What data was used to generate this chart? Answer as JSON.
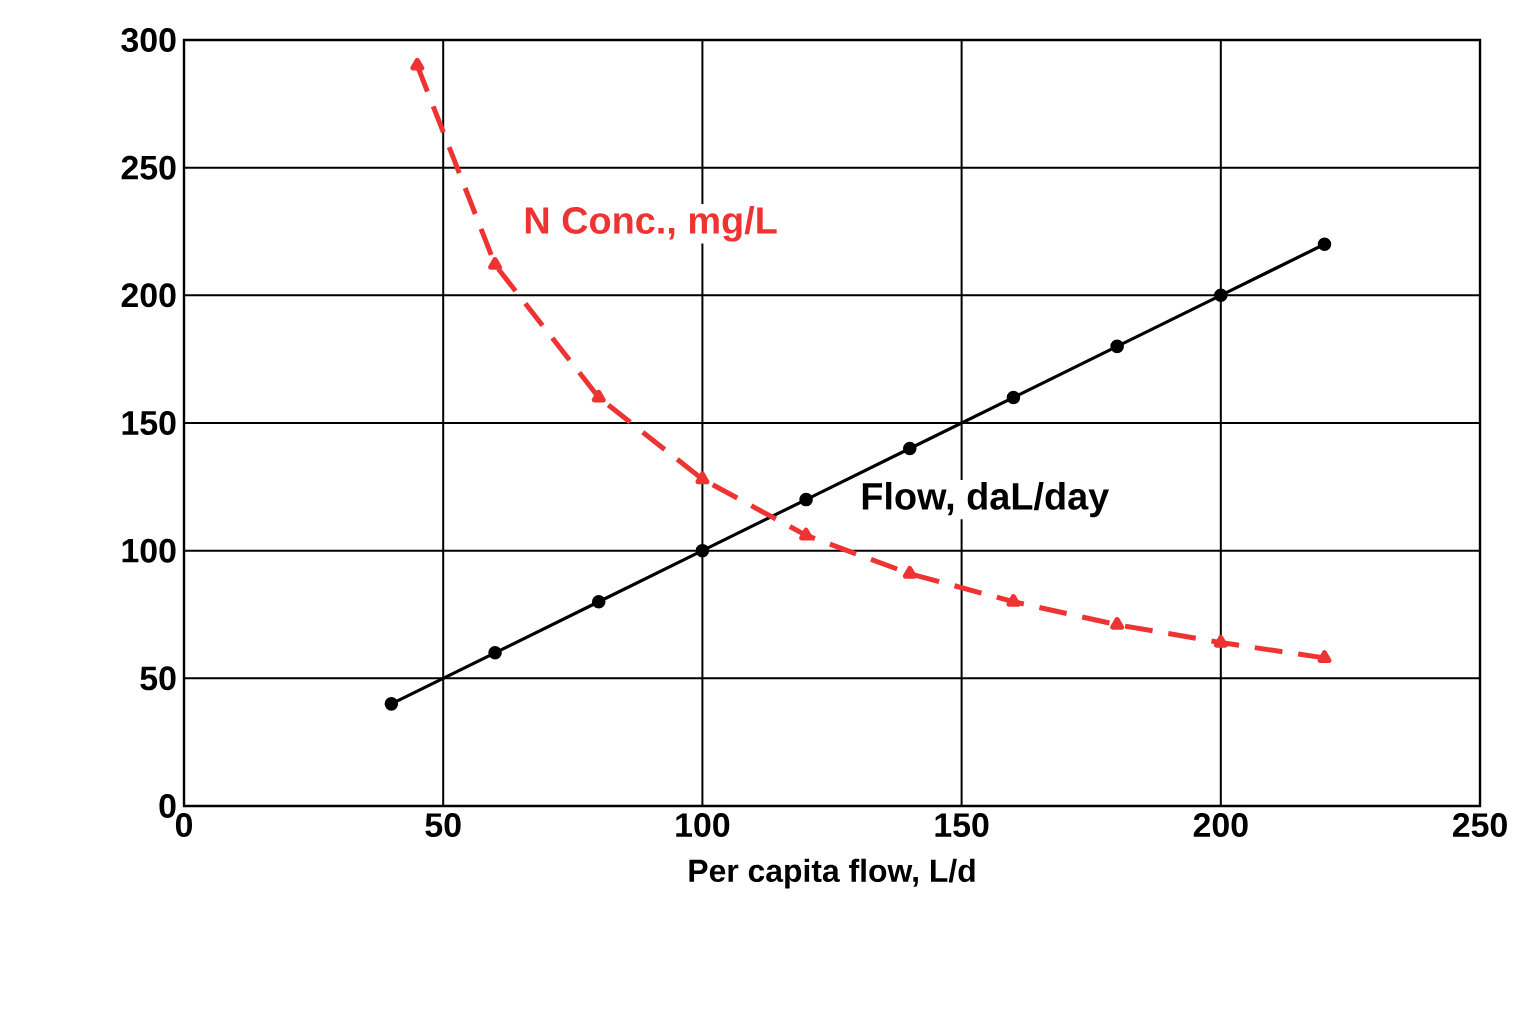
{
  "chart_data": {
    "type": "line",
    "xlabel": "Per capita flow, L/d",
    "xlim": [
      0,
      250
    ],
    "ylim": [
      0,
      300
    ],
    "xticks": [
      0,
      50,
      100,
      150,
      200,
      250
    ],
    "yticks": [
      0,
      50,
      100,
      150,
      200,
      250,
      300
    ],
    "grid": true,
    "legend": false,
    "series": [
      {
        "name": "Flow, daL/day",
        "color": "#000000",
        "marker": "circle",
        "line_style": "solid",
        "x": [
          40,
          60,
          80,
          100,
          120,
          140,
          160,
          180,
          200,
          220
        ],
        "values": [
          40,
          60,
          80,
          100,
          120,
          140,
          160,
          180,
          200,
          220
        ]
      },
      {
        "name": "N Conc., mg/L",
        "color": "#ee3333",
        "marker": "triangle",
        "line_style": "dashed",
        "x": [
          45,
          60,
          80,
          100,
          120,
          140,
          160,
          180,
          200,
          220
        ],
        "values": [
          290,
          212,
          160,
          128,
          106,
          91,
          80,
          71,
          64,
          58
        ]
      }
    ]
  }
}
